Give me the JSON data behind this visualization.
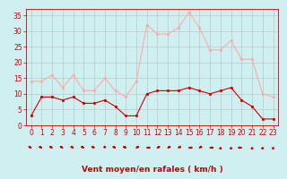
{
  "x": [
    0,
    1,
    2,
    3,
    4,
    5,
    6,
    7,
    8,
    9,
    10,
    11,
    12,
    13,
    14,
    15,
    16,
    17,
    18,
    19,
    20,
    21,
    22,
    23
  ],
  "wind_avg": [
    3,
    9,
    9,
    8,
    9,
    7,
    7,
    8,
    6,
    3,
    3,
    10,
    11,
    11,
    11,
    12,
    11,
    10,
    11,
    12,
    8,
    6,
    2,
    2
  ],
  "wind_gust": [
    14,
    14,
    16,
    12,
    16,
    11,
    11,
    15,
    11,
    9,
    14,
    32,
    29,
    29,
    31,
    36,
    31,
    24,
    24,
    27,
    21,
    21,
    10,
    9
  ],
  "avg_color": "#cc0000",
  "gust_color": "#ffaaaa",
  "bg_color": "#cff0f0",
  "grid_color": "#bbbbbb",
  "xlabel": "Vent moyen/en rafales ( km/h )",
  "xlim": [
    -0.5,
    23.5
  ],
  "ylim": [
    0,
    37
  ],
  "yticks": [
    0,
    5,
    10,
    15,
    20,
    25,
    30,
    35
  ],
  "xticks": [
    0,
    1,
    2,
    3,
    4,
    5,
    6,
    7,
    8,
    9,
    10,
    11,
    12,
    13,
    14,
    15,
    16,
    17,
    18,
    19,
    20,
    21,
    22,
    23
  ],
  "tick_fontsize": 5.5,
  "label_fontsize": 6.5,
  "marker_size": 2.0,
  "linewidth": 0.8
}
